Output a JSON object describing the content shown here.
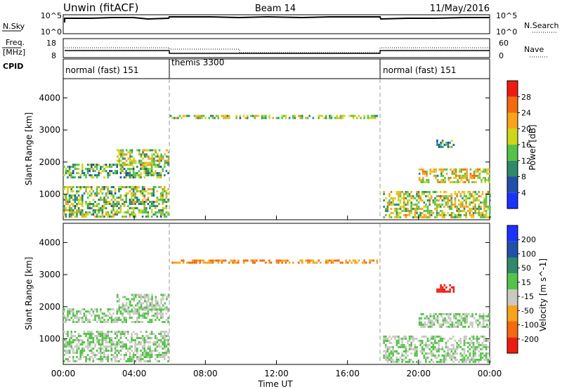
{
  "header": {
    "station": "Unwin (fitACF)",
    "beam": "Beam 14",
    "date": "11/May/2016"
  },
  "top_panels": {
    "nsky_label": "N.Sky",
    "nsky_ticks": [
      "10^5",
      "10^0"
    ],
    "nsearch_label": "N.Search",
    "nsearch_ticks": [
      "10^5",
      "10^0"
    ],
    "freq_label": "Freq.",
    "freq_unit": "[MHz]",
    "freq_ticks": [
      "18",
      "8"
    ],
    "nave_label": "Nave",
    "nave_ticks": [
      "60",
      "0"
    ],
    "cpid_label": "CPID",
    "cpid_modes": [
      {
        "start": 0,
        "end": 6,
        "label": "normal (fast) 151"
      },
      {
        "start": 6,
        "end": 18,
        "label": "themis 3300"
      },
      {
        "start": 18,
        "end": 24,
        "label": "normal (fast) 151"
      }
    ]
  },
  "chart_data": [
    {
      "type": "heatmap",
      "name": "power",
      "ylabel": "Slant Range [km]",
      "yticks": [
        "1000",
        "2000",
        "3000",
        "4000"
      ],
      "ylim": [
        200,
        4600
      ],
      "xlim": [
        0,
        24
      ],
      "colorbar_label": "Power [dB]",
      "colorbar_ticks": [
        "4",
        "8",
        "12",
        "16",
        "20",
        "24",
        "28"
      ],
      "colorbar_colors": [
        "#1a32ff",
        "#2050a8",
        "#2e8a68",
        "#55c24a",
        "#cfd51a",
        "#f7a41c",
        "#f46a10",
        "#ee1c10"
      ],
      "clim": [
        0,
        30
      ],
      "echo_regions": [
        {
          "t": [
            0.0,
            5.9
          ],
          "r": [
            1500,
            1950
          ],
          "level": 12
        },
        {
          "t": [
            0.0,
            5.9
          ],
          "r": [
            300,
            1250
          ],
          "level": 14
        },
        {
          "t": [
            3.0,
            5.9
          ],
          "r": [
            1900,
            2400
          ],
          "level": 15
        },
        {
          "t": [
            6.0,
            17.7
          ],
          "r": [
            3380,
            3470
          ],
          "level": 14
        },
        {
          "t": [
            18.0,
            24.0
          ],
          "r": [
            250,
            1100
          ],
          "level": 16
        },
        {
          "t": [
            20.0,
            24.0
          ],
          "r": [
            1350,
            1800
          ],
          "level": 18
        },
        {
          "t": [
            21.0,
            22.0
          ],
          "r": [
            2450,
            2700
          ],
          "level": 10
        }
      ]
    },
    {
      "type": "heatmap",
      "name": "velocity",
      "ylabel": "Slant Range [km]",
      "yticks": [
        "1000",
        "2000",
        "3000",
        "4000"
      ],
      "ylim": [
        200,
        4600
      ],
      "xlim": [
        0,
        24
      ],
      "colorbar_label": "Velocity [m s^-1]",
      "colorbar_ticks": [
        "200",
        "100",
        "50",
        "15",
        "-15",
        "-50",
        "-100",
        "-200"
      ],
      "colorbar_colors": [
        "#1a32ff",
        "#2050a8",
        "#2e8a68",
        "#55c24a",
        "#c9c9c2",
        "#f7a41c",
        "#f46a10",
        "#ee1c10"
      ],
      "clim": [
        -250,
        250
      ],
      "echo_regions": [
        {
          "t": [
            0.0,
            5.9
          ],
          "r": [
            1500,
            1950
          ],
          "level": 0
        },
        {
          "t": [
            0.0,
            5.9
          ],
          "r": [
            300,
            1250
          ],
          "level": 0
        },
        {
          "t": [
            3.0,
            5.9
          ],
          "r": [
            1900,
            2400
          ],
          "level": 0
        },
        {
          "t": [
            6.0,
            17.7
          ],
          "r": [
            3380,
            3470
          ],
          "level": -120
        },
        {
          "t": [
            18.0,
            24.0
          ],
          "r": [
            250,
            1100
          ],
          "level": 0
        },
        {
          "t": [
            20.0,
            24.0
          ],
          "r": [
            1350,
            1800
          ],
          "level": 0
        },
        {
          "t": [
            21.0,
            22.0
          ],
          "r": [
            2450,
            2700
          ],
          "level": -220
        }
      ]
    }
  ],
  "xaxis": {
    "label": "Time UT",
    "ticks": [
      "00:00",
      "04:00",
      "08:00",
      "12:00",
      "16:00",
      "20:00",
      "00:00"
    ]
  }
}
